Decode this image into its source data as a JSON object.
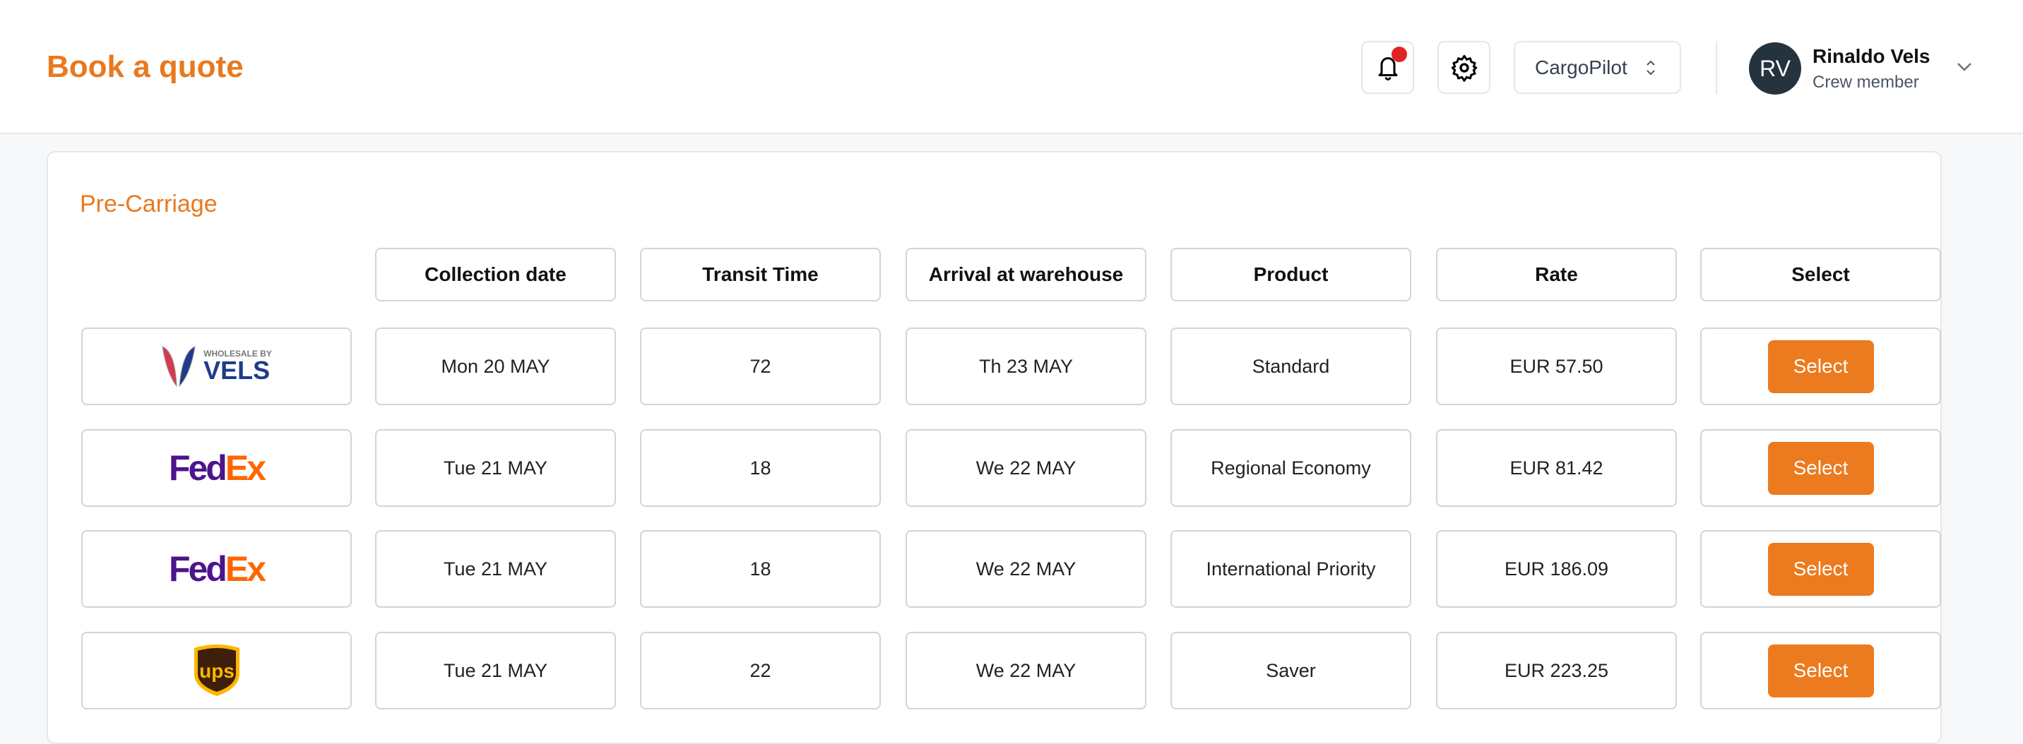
{
  "header": {
    "title": "Book a quote",
    "organization": "CargoPilot",
    "user": {
      "initials": "RV",
      "name": "Rinaldo Vels",
      "role": "Crew member"
    },
    "has_notification": true
  },
  "section": {
    "title": "Pre-Carriage"
  },
  "columns": [
    "Collection date",
    "Transit Time",
    "Arrival at warehouse",
    "Product",
    "Rate",
    "Select"
  ],
  "rows": [
    {
      "carrier": "Wholesale by Vels",
      "logo_text": [
        "WHOLESALE BY",
        "VELS"
      ],
      "collection_date": "Mon 20 MAY",
      "transit_time": "72",
      "arrival": "Th 23 MAY",
      "product": "Standard",
      "rate": "EUR 57.50",
      "select_label": "Select"
    },
    {
      "carrier": "FedEx",
      "logo_text": [
        "Fed",
        "Ex"
      ],
      "collection_date": "Tue 21 MAY",
      "transit_time": "18",
      "arrival": "We 22 MAY",
      "product": "Regional Economy",
      "rate": "EUR 81.42",
      "select_label": "Select"
    },
    {
      "carrier": "FedEx",
      "logo_text": [
        "Fed",
        "Ex"
      ],
      "collection_date": "Tue 21 MAY",
      "transit_time": "18",
      "arrival": "We 22 MAY",
      "product": "International Priority",
      "rate": "EUR 186.09",
      "select_label": "Select"
    },
    {
      "carrier": "UPS",
      "logo_text": [
        "ups"
      ],
      "collection_date": "Tue 21 MAY",
      "transit_time": "22",
      "arrival": "We 22 MAY",
      "product": "Saver",
      "rate": "EUR 223.25",
      "select_label": "Select"
    }
  ],
  "colors": {
    "accent": "#ec7a1e",
    "notification": "#e02424",
    "avatar": "#25333f"
  }
}
